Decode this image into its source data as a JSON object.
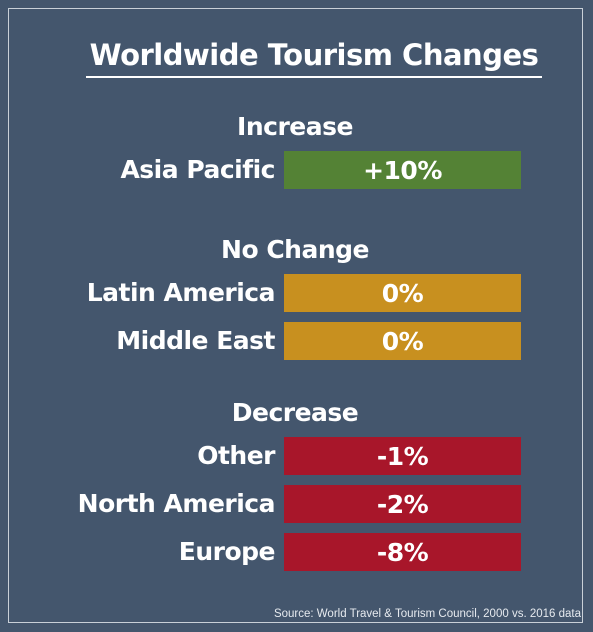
{
  "chart_data": {
    "type": "table",
    "title": "Worldwide Tourism Changes",
    "groups": [
      {
        "heading": "Increase",
        "color": "#548235",
        "rows": [
          {
            "region": "Asia Pacific",
            "value": 10,
            "label": "+10%"
          }
        ]
      },
      {
        "heading": "No Change",
        "color": "#c8901f",
        "rows": [
          {
            "region": "Latin America",
            "value": 0,
            "label": "0%"
          },
          {
            "region": "Middle East",
            "value": 0,
            "label": "0%"
          }
        ]
      },
      {
        "heading": "Decrease",
        "color": "#a8162a",
        "rows": [
          {
            "region": "Other",
            "value": -1,
            "label": "-1%"
          },
          {
            "region": "North America",
            "value": -2,
            "label": "-2%"
          },
          {
            "region": "Europe",
            "value": -8,
            "label": "-8%"
          }
        ]
      }
    ],
    "source": "Source: World Travel & Tourism Council, 2000 vs. 2016 data"
  },
  "colors": {
    "background": "#44566d",
    "text": "#ffffff",
    "increase": "#548235",
    "no_change": "#c8901f",
    "decrease": "#a8162a"
  }
}
